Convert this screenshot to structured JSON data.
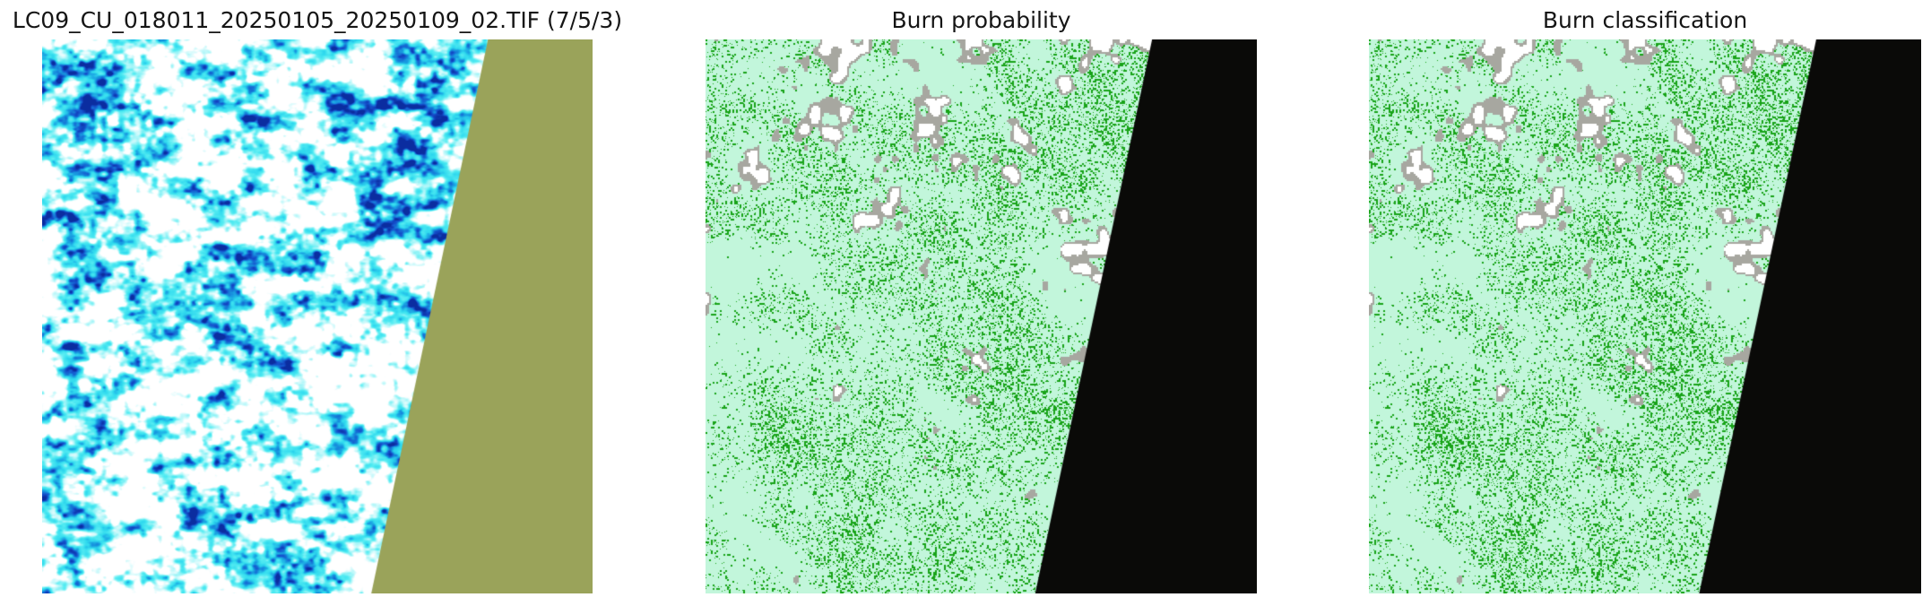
{
  "figure": {
    "background_color": "#ffffff",
    "title_color": "#151515",
    "panels": [
      {
        "id": "composite",
        "title": "LC09_CU_018011_20250105_20250109_02.TIF (7/5/3)",
        "palette": {
          "white": "#ffffff",
          "cyan_light": "#bdf8fa",
          "cyan": "#55ecf2",
          "cyan_deep": "#2fd9ee",
          "blue": "#1899e0",
          "blue_deep": "#1550cc",
          "navy": "#0b2da0",
          "nodata": "#9aa35a"
        }
      },
      {
        "id": "burn_probability",
        "title": "Burn probability",
        "palette": {
          "background": "#c2f6db",
          "green": "#18a318",
          "cloud_gray": "#a7a7a0",
          "cloud_white": "#ffffff",
          "nodata": "#0a0a08"
        }
      },
      {
        "id": "burn_classification",
        "title": "Burn classification",
        "palette": {
          "background": "#c2f6db",
          "green": "#18a318",
          "cloud_gray": "#a7a7a0",
          "cloud_white": "#ffffff",
          "nodata": "#0a0a08"
        }
      }
    ]
  },
  "chart_data": {
    "type": "heatmap",
    "title": "",
    "layout": {
      "rows": 1,
      "cols": 3,
      "axes_visible": false,
      "gridlines": false,
      "nodata_wedge": {
        "side": "right",
        "top_edge_fraction": 0.81,
        "bottom_edge_fraction": 0.598
      }
    },
    "panels": [
      {
        "title": "LC09_CU_018011_20250105_20250109_02.TIF (7/5/3)",
        "content": "Landsat 9 false-colour composite (bands 7/5/3): cyan-white cloud/snow texture with scattered dark-blue patches; olive-khaki off-scene no-data wedge along the right edge"
      },
      {
        "title": "Burn probability",
        "content": "Pale mint background with variable-density green speckle pattern indicating burn probability; grey/white cloud patches concentrated near the top; black no-data wedge along the right edge"
      },
      {
        "title": "Burn classification",
        "content": "Pale mint (unburned) background with green burned-class speckles matching the probability panel; grey/white cloud patches near the top; black no-data wedge along the right edge"
      }
    ]
  }
}
